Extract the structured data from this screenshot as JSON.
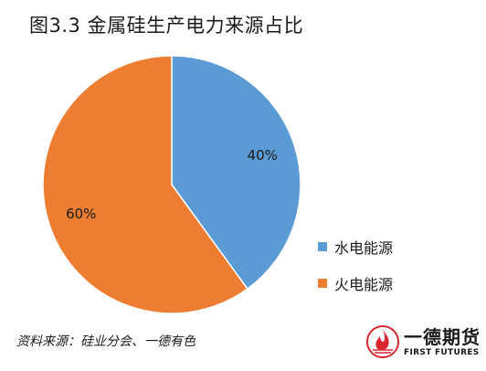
{
  "title": "图3.3 金属硅生产电力来源占比",
  "chart_data": {
    "type": "pie",
    "title": "图3.3 金属硅生产电力来源占比",
    "slices": [
      {
        "label": "水电能源",
        "value": 40,
        "value_label": "40%",
        "color": "#5b9bd5"
      },
      {
        "label": "火电能源",
        "value": 60,
        "value_label": "60%",
        "color": "#ed7d31"
      }
    ],
    "start": "12 o'clock",
    "direction": "clockwise",
    "legend_position": "right"
  },
  "source": "资料来源：硅业分会、一德有色",
  "brand": {
    "name": "一德期货",
    "name_en": "FIRST FUTURES",
    "logo_icon": "flame-circle-logo",
    "logo_color": "#d7262e"
  }
}
